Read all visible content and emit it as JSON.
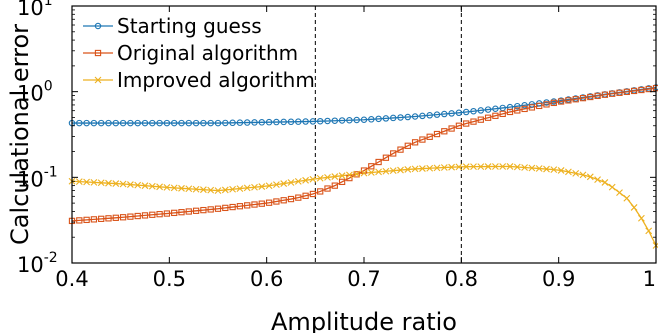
{
  "chart_data": {
    "type": "line",
    "xlabel": "Amplitude ratio",
    "ylabel": "Calculational error",
    "xlim": [
      0.4,
      1.0
    ],
    "ylim_log10": [
      -2,
      1
    ],
    "y_scale": "log",
    "grid": false,
    "legend_position": "top-left",
    "x_ticks": [
      {
        "value": 0.4,
        "label": "0.4"
      },
      {
        "value": 0.5,
        "label": "0.5"
      },
      {
        "value": 0.6,
        "label": "0.6"
      },
      {
        "value": 0.7,
        "label": "0.7"
      },
      {
        "value": 0.8,
        "label": "0.8"
      },
      {
        "value": 0.9,
        "label": "0.9"
      },
      {
        "value": 1.0,
        "label": "1"
      }
    ],
    "y_ticks": [
      {
        "exp": -2,
        "base": "10",
        "sup": "-2"
      },
      {
        "exp": -1,
        "base": "10",
        "sup": "-1"
      },
      {
        "exp": 0,
        "base": "10",
        "sup": "0"
      },
      {
        "exp": 1,
        "base": "10",
        "sup": "1"
      }
    ],
    "vlines": [
      0.65,
      0.8
    ],
    "series": [
      {
        "name": "Starting guess",
        "color": "#1f77b4",
        "marker": "circle",
        "x": [
          0.4,
          0.45,
          0.5,
          0.55,
          0.6,
          0.65,
          0.7,
          0.75,
          0.8,
          0.85,
          0.9,
          0.95,
          1.0
        ],
        "y": [
          0.43,
          0.43,
          0.43,
          0.43,
          0.44,
          0.45,
          0.47,
          0.51,
          0.57,
          0.66,
          0.78,
          0.94,
          1.12
        ]
      },
      {
        "name": "Original algorithm",
        "color": "#d95319",
        "marker": "square",
        "x": [
          0.4,
          0.45,
          0.5,
          0.55,
          0.6,
          0.63,
          0.65,
          0.67,
          0.7,
          0.73,
          0.75,
          0.8,
          0.85,
          0.9,
          0.95,
          1.0
        ],
        "y": [
          0.031,
          0.034,
          0.038,
          0.043,
          0.05,
          0.057,
          0.065,
          0.08,
          0.12,
          0.19,
          0.25,
          0.41,
          0.58,
          0.76,
          0.93,
          1.1
        ]
      },
      {
        "name": "Improved algorithm",
        "color": "#edb120",
        "marker": "x",
        "x": [
          0.4,
          0.45,
          0.5,
          0.55,
          0.6,
          0.65,
          0.7,
          0.75,
          0.8,
          0.85,
          0.9,
          0.93,
          0.95,
          0.97,
          0.98,
          0.99,
          1.0
        ],
        "y": [
          0.09,
          0.084,
          0.076,
          0.07,
          0.079,
          0.096,
          0.112,
          0.125,
          0.133,
          0.134,
          0.122,
          0.104,
          0.085,
          0.057,
          0.041,
          0.027,
          0.016
        ]
      }
    ]
  }
}
